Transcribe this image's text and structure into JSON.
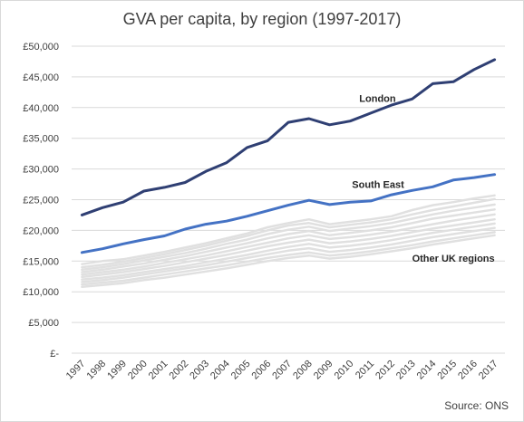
{
  "chart_data": {
    "type": "line",
    "title": "GVA per capita, by region (1997-2017)",
    "xlabel": "",
    "ylabel": "",
    "x": [
      "1997",
      "1998",
      "1999",
      "2000",
      "2001",
      "2002",
      "2003",
      "2004",
      "2005",
      "2006",
      "2007",
      "2008",
      "2009",
      "2010",
      "2011",
      "2012",
      "2013",
      "2014",
      "2015",
      "2016",
      "2017"
    ],
    "ylim": [
      0,
      50000
    ],
    "yticks": [
      0,
      5000,
      10000,
      15000,
      20000,
      25000,
      30000,
      35000,
      40000,
      45000,
      50000
    ],
    "ytick_labels": [
      "£-",
      "£5,000",
      "£10,000",
      "£15,000",
      "£20,000",
      "£25,000",
      "£30,000",
      "£35,000",
      "£40,000",
      "£45,000",
      "£50,000"
    ],
    "grid": true,
    "colors": {
      "london": "#2f3f73",
      "south_east": "#4472c4",
      "other": "#e0e0e0",
      "grid": "#d9d9d9"
    },
    "series": [
      {
        "name": "London",
        "color": "#2f3f73",
        "values": [
          22500,
          23700,
          24600,
          26400,
          27000,
          27800,
          29600,
          31000,
          33500,
          34600,
          37600,
          38200,
          37200,
          37800,
          39100,
          40400,
          41400,
          43900,
          44200,
          46200,
          47800
        ]
      },
      {
        "name": "South East",
        "color": "#4472c4",
        "values": [
          16400,
          17000,
          17800,
          18500,
          19100,
          20200,
          21000,
          21500,
          22300,
          23200,
          24100,
          24900,
          24200,
          24600,
          24800,
          25800,
          26500,
          27100,
          28200,
          28600,
          29100
        ]
      },
      {
        "color": "#e0e0e0",
        "values": [
          14500,
          15000,
          15300,
          15900,
          16500,
          17200,
          17900,
          18700,
          19500,
          20500,
          21200,
          21800,
          21000,
          21400,
          21800,
          22300,
          23300,
          24100,
          24600,
          25200,
          25700
        ]
      },
      {
        "color": "#e0e0e0",
        "values": [
          14000,
          14400,
          14900,
          15500,
          16100,
          16800,
          17500,
          18300,
          19100,
          20000,
          20800,
          21200,
          20500,
          20900,
          21300,
          21800,
          22600,
          23300,
          23900,
          24500,
          25100
        ]
      },
      {
        "color": "#e0e0e0",
        "values": [
          13600,
          14000,
          14500,
          15100,
          15700,
          16300,
          17000,
          17800,
          18500,
          19400,
          20100,
          20600,
          19900,
          20300,
          20700,
          21200,
          21900,
          22600,
          23200,
          23700,
          24200
        ]
      },
      {
        "color": "#e0e0e0",
        "values": [
          13200,
          13600,
          14100,
          14600,
          15200,
          15800,
          16500,
          17200,
          17900,
          18700,
          19400,
          19900,
          19200,
          19600,
          20000,
          20500,
          21200,
          21900,
          22400,
          22900,
          23400
        ]
      },
      {
        "color": "#e0e0e0",
        "values": [
          12800,
          13200,
          13600,
          14100,
          14700,
          15300,
          15900,
          16600,
          17300,
          18000,
          18700,
          19200,
          18600,
          18900,
          19300,
          19800,
          20400,
          21000,
          21600,
          22100,
          22600
        ]
      },
      {
        "color": "#e0e0e0",
        "values": [
          12400,
          12800,
          13200,
          13700,
          14200,
          14800,
          15400,
          16000,
          16700,
          17400,
          18000,
          18500,
          17900,
          18200,
          18600,
          19100,
          19700,
          20300,
          20800,
          21300,
          21800
        ]
      },
      {
        "color": "#e0e0e0",
        "values": [
          12000,
          12300,
          12700,
          13200,
          13700,
          14200,
          14800,
          15400,
          16000,
          16700,
          17300,
          17800,
          17200,
          17500,
          17900,
          18400,
          19000,
          19600,
          20100,
          20600,
          21100
        ]
      },
      {
        "color": "#e0e0e0",
        "values": [
          11600,
          11900,
          12300,
          12800,
          13300,
          13800,
          14300,
          14900,
          15500,
          16100,
          16700,
          17100,
          16500,
          16800,
          17200,
          17700,
          18300,
          18900,
          19400,
          19900,
          20400
        ]
      },
      {
        "color": "#e0e0e0",
        "values": [
          11200,
          11500,
          11800,
          12300,
          12800,
          13300,
          13800,
          14300,
          14900,
          15500,
          16000,
          16400,
          15900,
          16200,
          16600,
          17100,
          17600,
          18200,
          18700,
          19200,
          19700
        ]
      },
      {
        "color": "#e0e0e0",
        "values": [
          10800,
          11100,
          11400,
          11900,
          12300,
          12800,
          13300,
          13800,
          14400,
          15000,
          15500,
          15900,
          15400,
          15700,
          16100,
          16600,
          17100,
          17700,
          18200,
          18700,
          19200
        ]
      }
    ],
    "annotations": [
      "London",
      "South East",
      "Other UK regions"
    ]
  },
  "source_note": "Source: ONS"
}
